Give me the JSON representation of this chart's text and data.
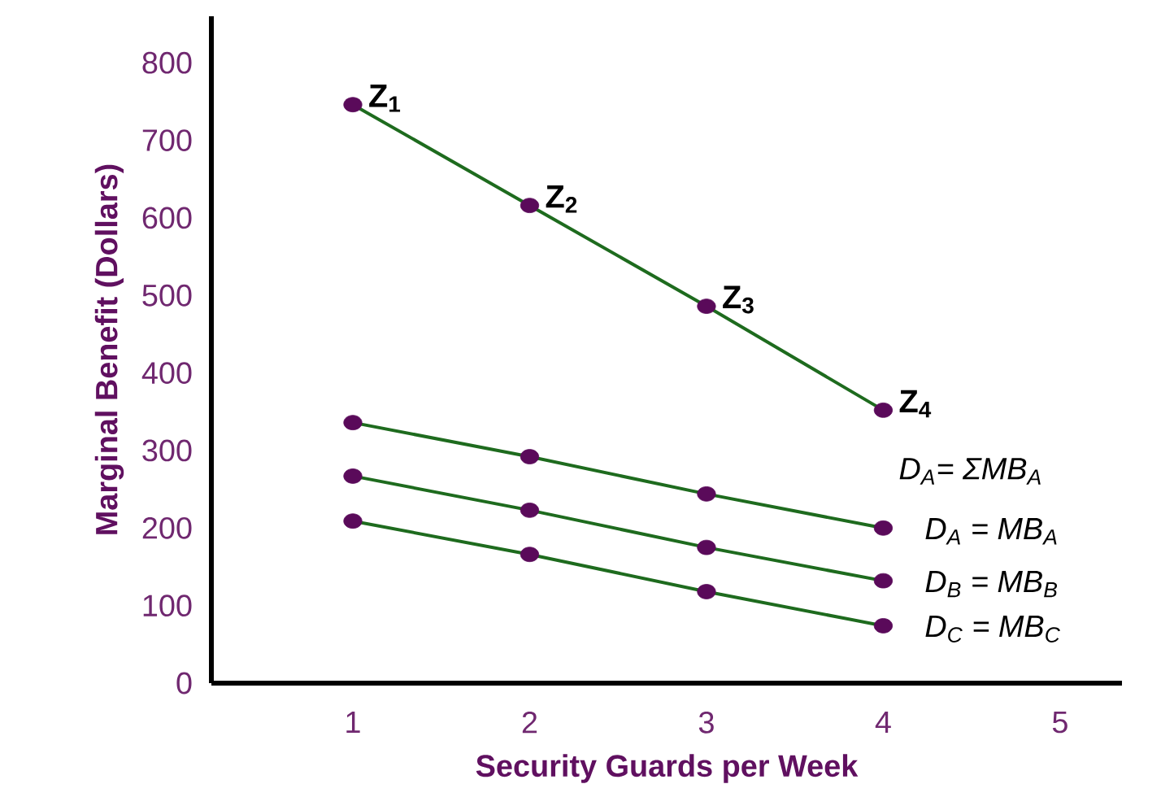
{
  "chart_data": {
    "type": "line",
    "xlabel": "Security Guards per Week",
    "ylabel": "Marginal Benefit (Dollars)",
    "x": [
      1,
      2,
      3,
      4
    ],
    "series": [
      {
        "name": "D$_{A}$= ΣMB$_{A}$",
        "color": "#1e6b1e",
        "colors": [
          "#5a0a5a",
          "#5a0a5a",
          "#5a0a5a",
          "#5a0a5a"
        ],
        "values": [
          746,
          616,
          486,
          352
        ]
      },
      {
        "name": "D$_{A}$ = MB$_{A}$",
        "color": "#1e6b1e",
        "colors": [
          "#5a0a5a",
          "#5a0a5a",
          "#5a0a5a",
          "#5a0a5a"
        ],
        "values": [
          336,
          292,
          244,
          200
        ]
      },
      {
        "name": "D$_{B}$ = MB$_{B}$",
        "color": "#1e6b1e",
        "colors": [
          "#5a0a5a",
          "#5a0a5a",
          "#5a0a5a",
          "#5a0a5a"
        ],
        "values": [
          267,
          223,
          175,
          132
        ]
      },
      {
        "name": "D$_{C}$ = MB$_{C}$",
        "color": "#1e6b1e",
        "colors": [
          "#5a0a5a",
          "#5a0a5a",
          "#5a0a5a",
          "#5a0a5a"
        ],
        "values": [
          209,
          166,
          118,
          74
        ]
      }
    ],
    "annotations": [
      {
        "text": "Z$_{1}$",
        "x": 1,
        "y": 746
      },
      {
        "text": "Z$_{2}$",
        "x": 2,
        "y": 616
      },
      {
        "text": "Z$_{3}$",
        "x": 3,
        "y": 486
      },
      {
        "text": "Z$_{4}$",
        "x": 4,
        "y": 352
      }
    ],
    "xlim": [
      0.2,
      5.35
    ],
    "ylim": [
      0,
      860
    ],
    "xticks": [
      1,
      2,
      3,
      4,
      5
    ],
    "yticks": [
      0,
      100,
      200,
      300,
      400,
      500,
      600,
      700,
      800
    ],
    "marker": "circle",
    "line_style": "solid",
    "legend": false,
    "grid": false
  }
}
